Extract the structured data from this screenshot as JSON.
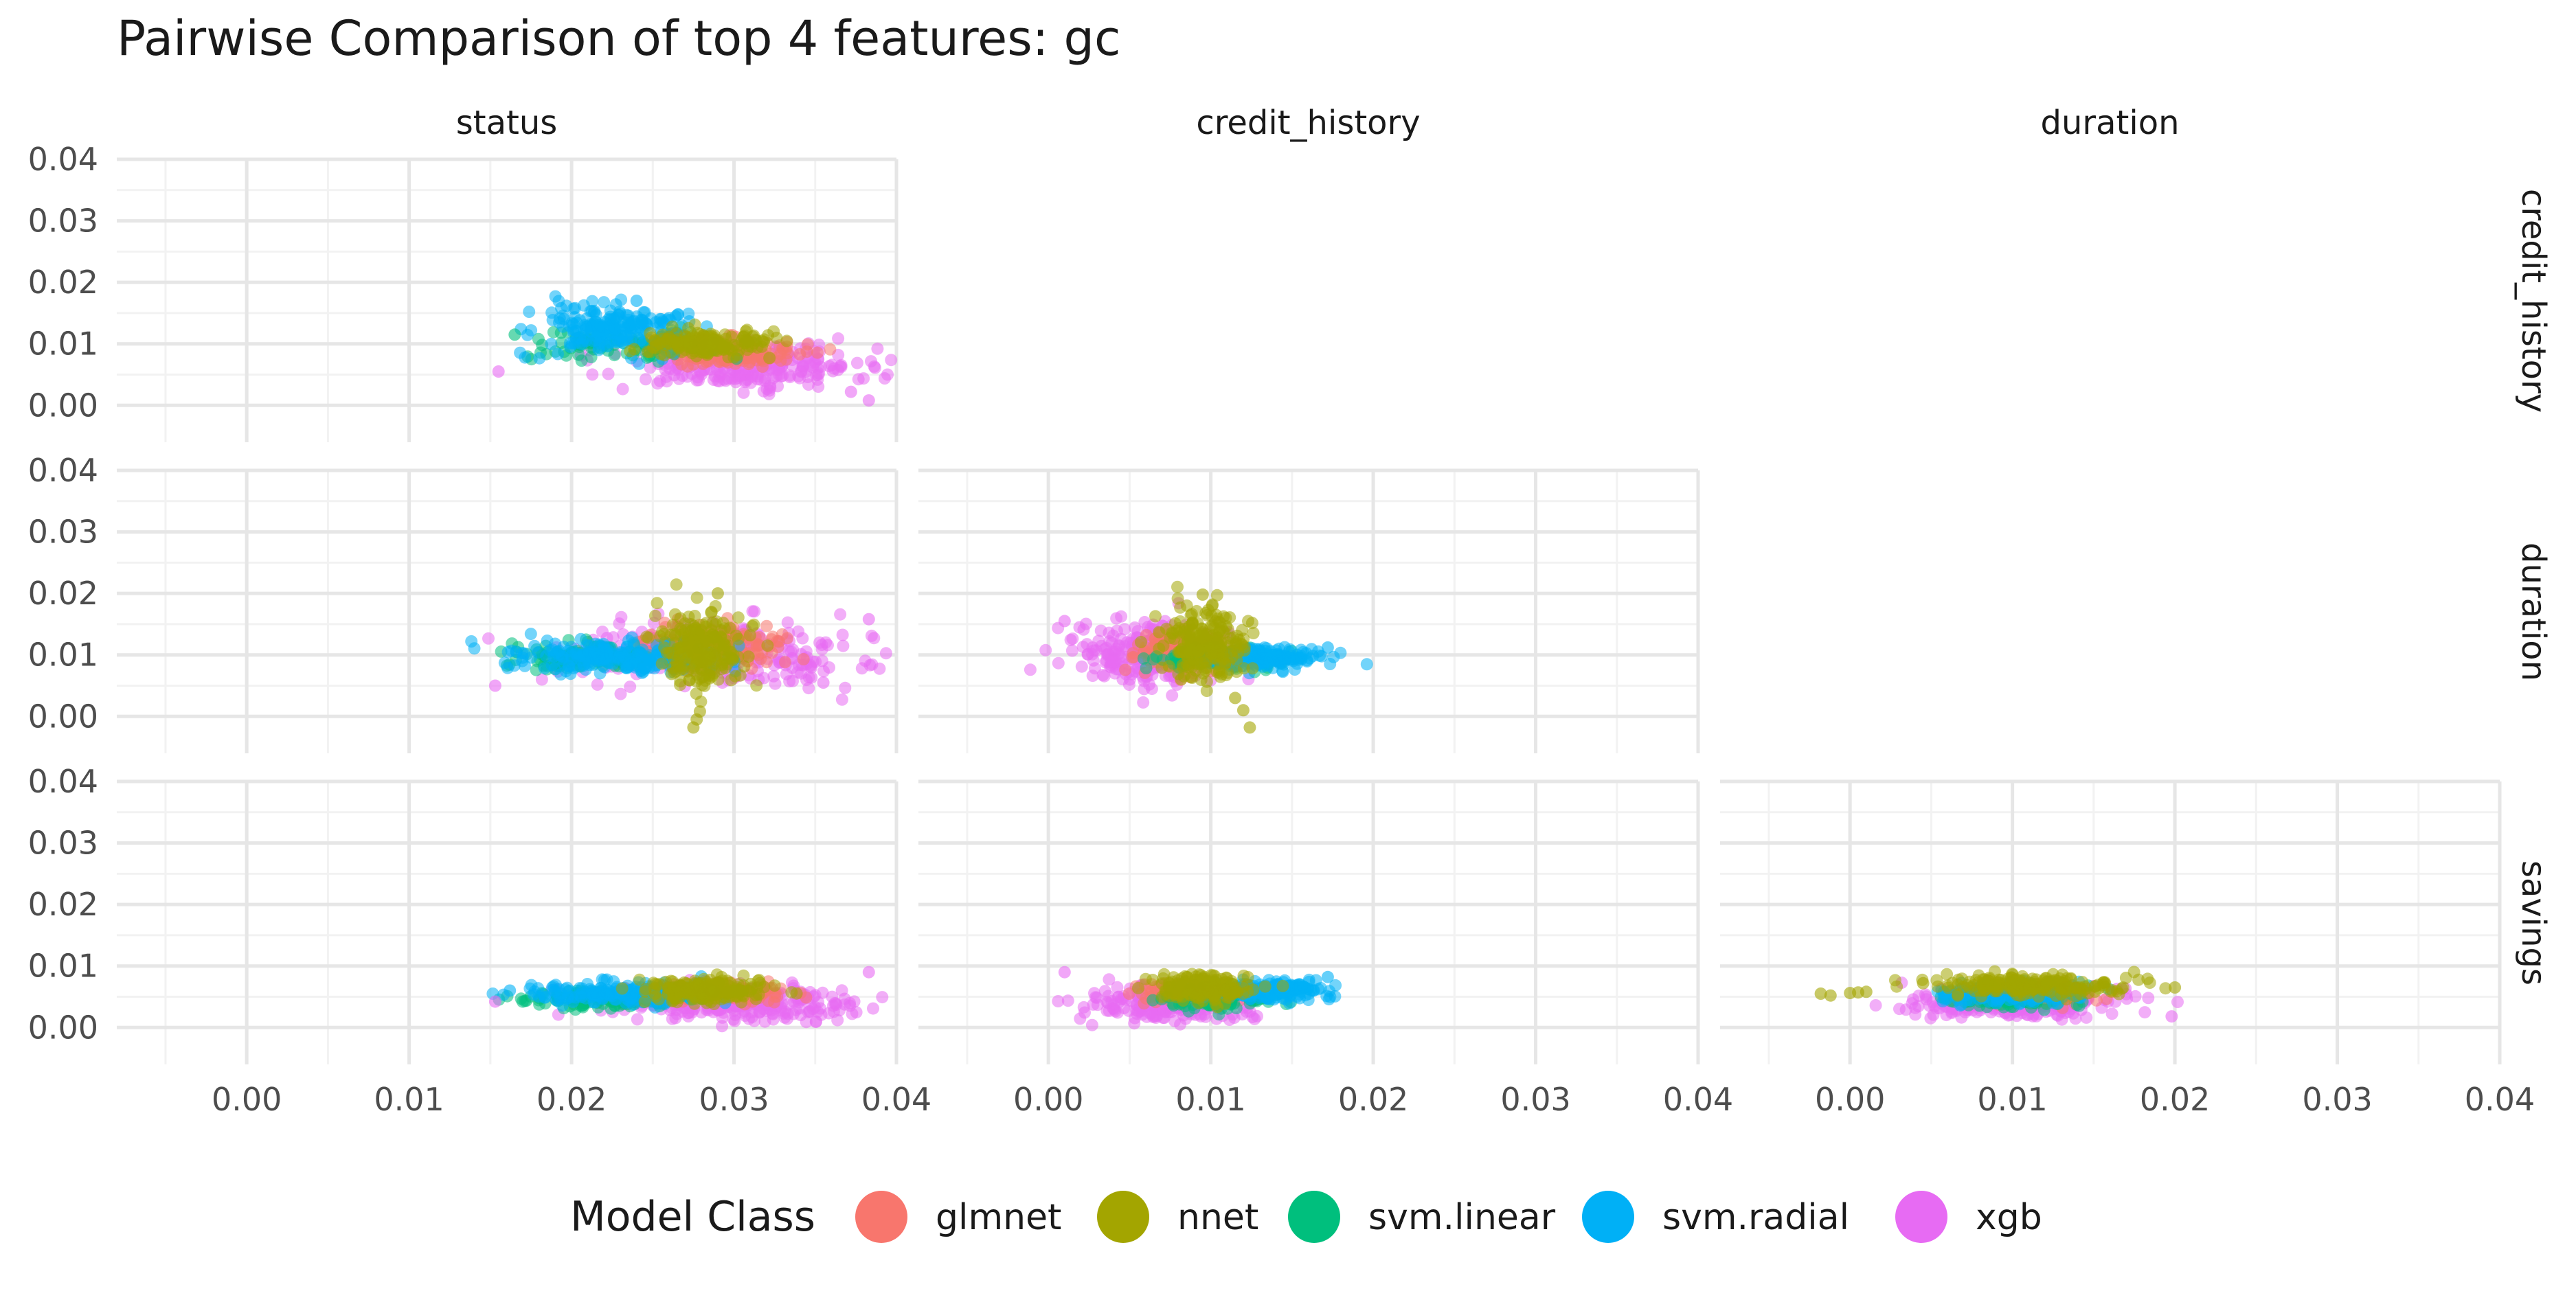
{
  "chart_data": {
    "type": "scatter",
    "title": "Pairwise Comparison of top 4 features: gc",
    "column_facets": [
      "status",
      "credit_history",
      "duration"
    ],
    "row_facets": [
      "credit_history",
      "duration",
      "savings"
    ],
    "xlim": [
      -0.008,
      0.04
    ],
    "ylim": [
      -0.006,
      0.04
    ],
    "x_ticks": [
      "0.00",
      "0.01",
      "0.02",
      "0.03",
      "0.04"
    ],
    "y_ticks": [
      "0.00",
      "0.01",
      "0.02",
      "0.03",
      "0.04"
    ],
    "grid": true,
    "legend": {
      "title": "Model Class",
      "placement": "bottom",
      "entries": [
        {
          "name": "glmnet",
          "color": "#F8766D"
        },
        {
          "name": "nnet",
          "color": "#A3A500"
        },
        {
          "name": "svm.linear",
          "color": "#00BF7D"
        },
        {
          "name": "svm.radial",
          "color": "#00B0F6"
        },
        {
          "name": "xgb",
          "color": "#E76BF3"
        }
      ]
    },
    "panels": [
      {
        "row": "credit_history",
        "col": "status",
        "clusters": [
          {
            "series": "xgb",
            "cx": 0.0305,
            "cy": 0.0065,
            "sx": 0.0038,
            "sy": 0.0018,
            "n": 260
          },
          {
            "series": "glmnet",
            "cx": 0.0295,
            "cy": 0.0085,
            "sx": 0.0022,
            "sy": 0.0011,
            "n": 170
          },
          {
            "series": "svm.linear",
            "cx": 0.0235,
            "cy": 0.01,
            "sx": 0.0028,
            "sy": 0.0012,
            "n": 90
          },
          {
            "series": "svm.radial",
            "cx": 0.0225,
            "cy": 0.0125,
            "sx": 0.0025,
            "sy": 0.002,
            "n": 200
          },
          {
            "series": "nnet",
            "cx": 0.028,
            "cy": 0.01,
            "sx": 0.0018,
            "sy": 0.001,
            "n": 190
          }
        ],
        "outliers": [
          {
            "series": "xgb",
            "x": 0.0155,
            "y": 0.0055
          },
          {
            "series": "xgb",
            "x": 0.0383,
            "y": 0.0008
          },
          {
            "series": "xgb",
            "x": 0.0372,
            "y": 0.0022
          },
          {
            "series": "svm.radial",
            "x": 0.024,
            "y": 0.017
          },
          {
            "series": "svm.linear",
            "x": 0.0165,
            "y": 0.0115
          }
        ]
      },
      {
        "row": "duration",
        "col": "status",
        "clusters": [
          {
            "series": "xgb",
            "cx": 0.029,
            "cy": 0.01,
            "sx": 0.0045,
            "sy": 0.0025,
            "n": 300
          },
          {
            "series": "glmnet",
            "cx": 0.029,
            "cy": 0.0115,
            "sx": 0.002,
            "sy": 0.0018,
            "n": 170
          },
          {
            "series": "svm.linear",
            "cx": 0.021,
            "cy": 0.0095,
            "sx": 0.003,
            "sy": 0.0012,
            "n": 110
          },
          {
            "series": "svm.radial",
            "cx": 0.0225,
            "cy": 0.0095,
            "sx": 0.0032,
            "sy": 0.0012,
            "n": 200
          },
          {
            "series": "nnet",
            "cx": 0.028,
            "cy": 0.011,
            "sx": 0.0013,
            "sy": 0.003,
            "n": 220
          }
        ],
        "outliers": [
          {
            "series": "xgb",
            "x": 0.0153,
            "y": 0.005
          },
          {
            "series": "xgb",
            "x": 0.0383,
            "y": 0.0158
          },
          {
            "series": "xgb",
            "x": 0.0355,
            "y": 0.0055
          },
          {
            "series": "nnet",
            "x": 0.0275,
            "y": -0.0018
          },
          {
            "series": "nnet",
            "x": 0.0277,
            "y": -0.0005
          },
          {
            "series": "nnet",
            "x": 0.0279,
            "y": 0.0008
          },
          {
            "series": "nnet",
            "x": 0.029,
            "y": 0.02
          }
        ]
      },
      {
        "row": "duration",
        "col": "credit_history",
        "clusters": [
          {
            "series": "xgb",
            "cx": 0.0065,
            "cy": 0.01,
            "sx": 0.0022,
            "sy": 0.0025,
            "n": 280
          },
          {
            "series": "glmnet",
            "cx": 0.008,
            "cy": 0.0105,
            "sx": 0.0012,
            "sy": 0.0015,
            "n": 160
          },
          {
            "series": "svm.linear",
            "cx": 0.01,
            "cy": 0.0095,
            "sx": 0.0018,
            "sy": 0.001,
            "n": 90
          },
          {
            "series": "svm.radial",
            "cx": 0.0135,
            "cy": 0.0095,
            "sx": 0.0018,
            "sy": 0.0008,
            "n": 170
          },
          {
            "series": "nnet",
            "cx": 0.0098,
            "cy": 0.012,
            "sx": 0.0012,
            "sy": 0.0028,
            "n": 220
          }
        ],
        "outliers": [
          {
            "series": "xgb",
            "x": 0.001,
            "y": 0.0155
          },
          {
            "series": "svm.radial",
            "x": 0.0172,
            "y": 0.0112
          },
          {
            "series": "nnet",
            "x": 0.012,
            "y": 0.001
          },
          {
            "series": "nnet",
            "x": 0.0124,
            "y": -0.0018
          },
          {
            "series": "nnet",
            "x": 0.0115,
            "y": 0.003
          },
          {
            "series": "nnet",
            "x": 0.0095,
            "y": 0.0198
          }
        ]
      },
      {
        "row": "savings",
        "col": "status",
        "clusters": [
          {
            "series": "xgb",
            "cx": 0.03,
            "cy": 0.004,
            "sx": 0.004,
            "sy": 0.0014,
            "n": 280
          },
          {
            "series": "glmnet",
            "cx": 0.029,
            "cy": 0.0055,
            "sx": 0.0022,
            "sy": 0.0008,
            "n": 150
          },
          {
            "series": "svm.linear",
            "cx": 0.0215,
            "cy": 0.0045,
            "sx": 0.0028,
            "sy": 0.0008,
            "n": 100
          },
          {
            "series": "svm.radial",
            "cx": 0.023,
            "cy": 0.0055,
            "sx": 0.003,
            "sy": 0.0009,
            "n": 190
          },
          {
            "series": "nnet",
            "cx": 0.0285,
            "cy": 0.0062,
            "sx": 0.002,
            "sy": 0.001,
            "n": 190
          }
        ],
        "outliers": [
          {
            "series": "xgb",
            "x": 0.0153,
            "y": 0.0042
          },
          {
            "series": "xgb",
            "x": 0.0383,
            "y": 0.009
          },
          {
            "series": "svm.radial",
            "x": 0.0162,
            "y": 0.006
          }
        ]
      },
      {
        "row": "savings",
        "col": "credit_history",
        "clusters": [
          {
            "series": "xgb",
            "cx": 0.0075,
            "cy": 0.004,
            "sx": 0.0025,
            "sy": 0.0013,
            "n": 280
          },
          {
            "series": "glmnet",
            "cx": 0.0085,
            "cy": 0.0055,
            "sx": 0.0012,
            "sy": 0.0008,
            "n": 150
          },
          {
            "series": "svm.linear",
            "cx": 0.0105,
            "cy": 0.0045,
            "sx": 0.0015,
            "sy": 0.0008,
            "n": 90
          },
          {
            "series": "svm.radial",
            "cx": 0.0135,
            "cy": 0.006,
            "sx": 0.0018,
            "sy": 0.0008,
            "n": 180
          },
          {
            "series": "nnet",
            "cx": 0.0095,
            "cy": 0.0065,
            "sx": 0.0013,
            "sy": 0.001,
            "n": 190
          }
        ],
        "outliers": [
          {
            "series": "xgb",
            "x": 0.001,
            "y": 0.009
          },
          {
            "series": "svm.radial",
            "x": 0.0172,
            "y": 0.0082
          }
        ]
      },
      {
        "row": "savings",
        "col": "duration",
        "clusters": [
          {
            "series": "xgb",
            "cx": 0.01,
            "cy": 0.004,
            "sx": 0.003,
            "sy": 0.0012,
            "n": 280
          },
          {
            "series": "glmnet",
            "cx": 0.0115,
            "cy": 0.0055,
            "sx": 0.0015,
            "sy": 0.0007,
            "n": 150
          },
          {
            "series": "svm.linear",
            "cx": 0.01,
            "cy": 0.0045,
            "sx": 0.0018,
            "sy": 0.0007,
            "n": 90
          },
          {
            "series": "svm.radial",
            "cx": 0.01,
            "cy": 0.0055,
            "sx": 0.0022,
            "sy": 0.0009,
            "n": 180
          },
          {
            "series": "nnet",
            "cx": 0.011,
            "cy": 0.0068,
            "sx": 0.0028,
            "sy": 0.0008,
            "n": 200
          }
        ],
        "outliers": [
          {
            "series": "nnet",
            "x": -0.0018,
            "y": 0.0055
          },
          {
            "series": "nnet",
            "x": -0.0012,
            "y": 0.0052
          },
          {
            "series": "nnet",
            "x": 0.0,
            "y": 0.0056
          },
          {
            "series": "nnet",
            "x": 0.0005,
            "y": 0.0057
          },
          {
            "series": "nnet",
            "x": 0.001,
            "y": 0.0058
          },
          {
            "series": "nnet",
            "x": 0.0045,
            "y": 0.0072
          },
          {
            "series": "nnet",
            "x": 0.02,
            "y": 0.0065
          },
          {
            "series": "xgb",
            "x": 0.0198,
            "y": 0.0018
          }
        ]
      }
    ]
  }
}
